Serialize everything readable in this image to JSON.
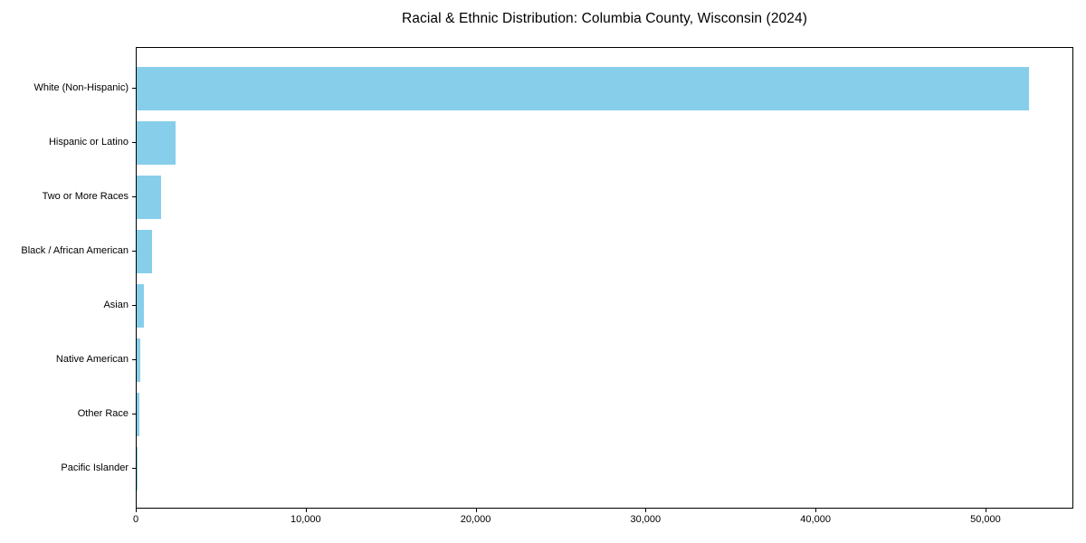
{
  "chart_data": {
    "type": "bar",
    "orientation": "horizontal",
    "title": "Racial & Ethnic Distribution: Columbia County, Wisconsin (2024)",
    "categories": [
      "White (Non-Hispanic)",
      "Hispanic or Latino",
      "Two or More Races",
      "Black / African American",
      "Asian",
      "Native American",
      "Other Race",
      "Pacific Islander"
    ],
    "values": [
      52500,
      2300,
      1450,
      880,
      400,
      190,
      135,
      20
    ],
    "xlabel": "",
    "ylabel": "",
    "xlim": [
      0,
      55170
    ],
    "xticks": [
      0,
      10000,
      20000,
      30000,
      40000,
      50000
    ],
    "xtick_labels": [
      "0",
      "10,000",
      "20,000",
      "30,000",
      "40,000",
      "50,000"
    ],
    "bar_color": "#87CEEB",
    "axis_color": "#000000",
    "background_color": "#ffffff",
    "grid": false,
    "legend": null
  }
}
